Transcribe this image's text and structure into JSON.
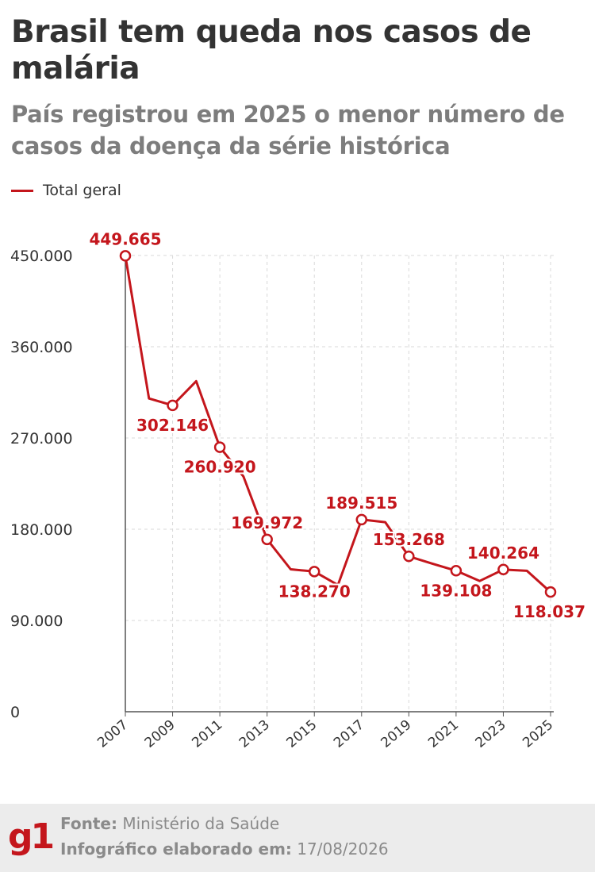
{
  "header": {
    "title": "Brasil tem queda nos casos de malária",
    "subtitle": "País registrou em 2025 o menor número de casos da doença da série histórica"
  },
  "colors": {
    "series": "#c4161c",
    "title": "#333333",
    "subtitle": "#7d7d7d",
    "grid": "#d9d9d9",
    "axis_text": "#333333",
    "footer_bg": "#ececec",
    "footer_text": "#8a8a8a",
    "brand": "#c4161c"
  },
  "chart_data": {
    "type": "line",
    "x": [
      2007,
      2008,
      2009,
      2010,
      2011,
      2012,
      2013,
      2014,
      2015,
      2016,
      2017,
      2018,
      2019,
      2020,
      2021,
      2022,
      2023,
      2024,
      2025
    ],
    "series": [
      {
        "name": "Total geral",
        "values": [
          449665,
          309000,
          302146,
          326000,
          260920,
          232000,
          169972,
          140500,
          138270,
          125000,
          189515,
          187000,
          153268,
          146000,
          139108,
          129000,
          140264,
          139000,
          118037
        ]
      }
    ],
    "marked_years": [
      2007,
      2009,
      2011,
      2013,
      2015,
      2017,
      2019,
      2021,
      2023,
      2025
    ],
    "data_labels": [
      {
        "x": 2007,
        "text": "449.665",
        "pos": "above"
      },
      {
        "x": 2009,
        "text": "302.146",
        "pos": "below"
      },
      {
        "x": 2011,
        "text": "260.920",
        "pos": "below"
      },
      {
        "x": 2013,
        "text": "169.972",
        "pos": "above"
      },
      {
        "x": 2015,
        "text": "138.270",
        "pos": "below"
      },
      {
        "x": 2017,
        "text": "189.515",
        "pos": "above"
      },
      {
        "x": 2019,
        "text": "153.268",
        "pos": "above"
      },
      {
        "x": 2021,
        "text": "139.108",
        "pos": "below"
      },
      {
        "x": 2023,
        "text": "140.264",
        "pos": "above"
      },
      {
        "x": 2025,
        "text": "118.037",
        "pos": "below"
      }
    ],
    "x_ticks": [
      "2007",
      "2009",
      "2011",
      "2013",
      "2015",
      "2017",
      "2019",
      "2021",
      "2023",
      "2025"
    ],
    "y_ticks": [
      {
        "value": 0,
        "label": "0"
      },
      {
        "value": 90000,
        "label": "90.000"
      },
      {
        "value": 180000,
        "label": "180.000"
      },
      {
        "value": 270000,
        "label": "270.000"
      },
      {
        "value": 360000,
        "label": "360.000"
      },
      {
        "value": 450000,
        "label": "450.000"
      }
    ],
    "ylim": [
      0,
      450000
    ],
    "xlim": [
      2007,
      2025
    ],
    "grid": true,
    "legend": "top-left"
  },
  "legend": {
    "label": "Total geral"
  },
  "footer": {
    "logo": "g1",
    "source_label": "Fonte:",
    "source_value": "Ministério da Saúde",
    "date_label": "Infográfico elaborado em:",
    "date_value": "17/08/2026"
  }
}
